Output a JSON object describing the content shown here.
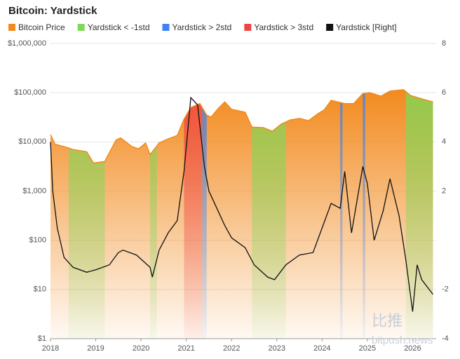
{
  "chart_data": {
    "type": "area",
    "title": "Bitcoin: Yardstick",
    "annotations": [
      "比推",
      "bitpush.news"
    ],
    "xlim": [
      2018,
      2026.52
    ],
    "xticks": [
      2018,
      2019,
      2020,
      2021,
      2022,
      2023,
      2024,
      2025,
      2026
    ],
    "ylim": [
      1,
      1000000
    ],
    "log_scale": true,
    "yticks": [
      {
        "value": 1,
        "label": "$1"
      },
      {
        "value": 10,
        "label": "$10"
      },
      {
        "value": 100,
        "label": "$100"
      },
      {
        "value": 1000,
        "label": "$1,000"
      },
      {
        "value": 10000,
        "label": "$10,000"
      },
      {
        "value": 100000,
        "label": "$100,000"
      },
      {
        "value": 1000000,
        "label": "$1,000,000"
      }
    ],
    "y2lim": [
      -4,
      8
    ],
    "y2ticks": [
      -4,
      -2,
      2,
      4,
      6,
      8
    ],
    "grid": true,
    "series": [
      {
        "name": "Bitcoin Price",
        "color": "#f28a1e",
        "x": [
          2018.0,
          2018.1,
          2018.3,
          2018.5,
          2018.8,
          2018.95,
          2019.2,
          2019.45,
          2019.55,
          2019.8,
          2019.95,
          2020.1,
          2020.2,
          2020.4,
          2020.6,
          2020.8,
          2020.95,
          2021.1,
          2021.3,
          2021.45,
          2021.55,
          2021.7,
          2021.85,
          2022.0,
          2022.3,
          2022.45,
          2022.7,
          2022.9,
          2023.1,
          2023.3,
          2023.5,
          2023.7,
          2023.9,
          2024.05,
          2024.2,
          2024.5,
          2024.7,
          2024.9,
          2025.05,
          2025.3,
          2025.5,
          2025.8,
          2025.95,
          2026.2,
          2026.45
        ],
        "values": [
          14000,
          9000,
          8000,
          7000,
          6300,
          3700,
          4000,
          11000,
          12000,
          8000,
          7200,
          9500,
          5500,
          9500,
          11500,
          13500,
          29000,
          50000,
          60000,
          35000,
          32000,
          47000,
          65000,
          46000,
          40000,
          20000,
          19500,
          16500,
          23000,
          28000,
          30000,
          27000,
          37000,
          45000,
          70000,
          60000,
          60000,
          96000,
          100000,
          85000,
          108000,
          115000,
          88000,
          75000,
          65000
        ]
      },
      {
        "name": "Yardstick < -1std",
        "color": "#7ed957",
        "ranges": [
          [
            2018.4,
            2019.2
          ],
          [
            2020.2,
            2020.35
          ],
          [
            2022.45,
            2023.2
          ],
          [
            2025.85,
            2026.45
          ]
        ]
      },
      {
        "name": "Yardstick > 2std",
        "color": "#3b82f6",
        "ranges": [
          [
            2021.35,
            2021.45
          ],
          [
            2024.4,
            2024.45
          ],
          [
            2024.9,
            2024.95
          ]
        ]
      },
      {
        "name": "Yardstick > 3std",
        "color": "#ef4444",
        "ranges": [
          [
            2020.95,
            2021.35
          ]
        ]
      },
      {
        "name": "Yardstick [Right]",
        "color": "#111111",
        "axis": "y2",
        "x": [
          2018.0,
          2018.05,
          2018.15,
          2018.3,
          2018.5,
          2018.8,
          2019.0,
          2019.3,
          2019.5,
          2019.6,
          2019.9,
          2020.2,
          2020.25,
          2020.4,
          2020.6,
          2020.8,
          2020.95,
          2021.1,
          2021.25,
          2021.4,
          2021.5,
          2021.7,
          2021.85,
          2022.0,
          2022.3,
          2022.5,
          2022.8,
          2022.95,
          2023.2,
          2023.5,
          2023.8,
          2024.0,
          2024.2,
          2024.4,
          2024.5,
          2024.65,
          2024.9,
          2025.0,
          2025.15,
          2025.35,
          2025.5,
          2025.7,
          2025.85,
          2026.0,
          2026.1,
          2026.2,
          2026.45
        ],
        "values": [
          4.0,
          2.0,
          0.5,
          -0.7,
          -1.1,
          -1.3,
          -1.2,
          -1.0,
          -0.5,
          -0.4,
          -0.6,
          -1.1,
          -1.5,
          -0.4,
          0.3,
          0.8,
          2.8,
          5.8,
          5.5,
          3.0,
          2.0,
          1.2,
          0.6,
          0.1,
          -0.3,
          -1.0,
          -1.5,
          -1.6,
          -1.0,
          -0.6,
          -0.5,
          0.5,
          1.5,
          1.3,
          2.8,
          0.3,
          3.0,
          2.3,
          0.0,
          1.2,
          2.5,
          1.0,
          -0.8,
          -2.9,
          -1.0,
          -1.6,
          -2.2
        ]
      }
    ]
  }
}
